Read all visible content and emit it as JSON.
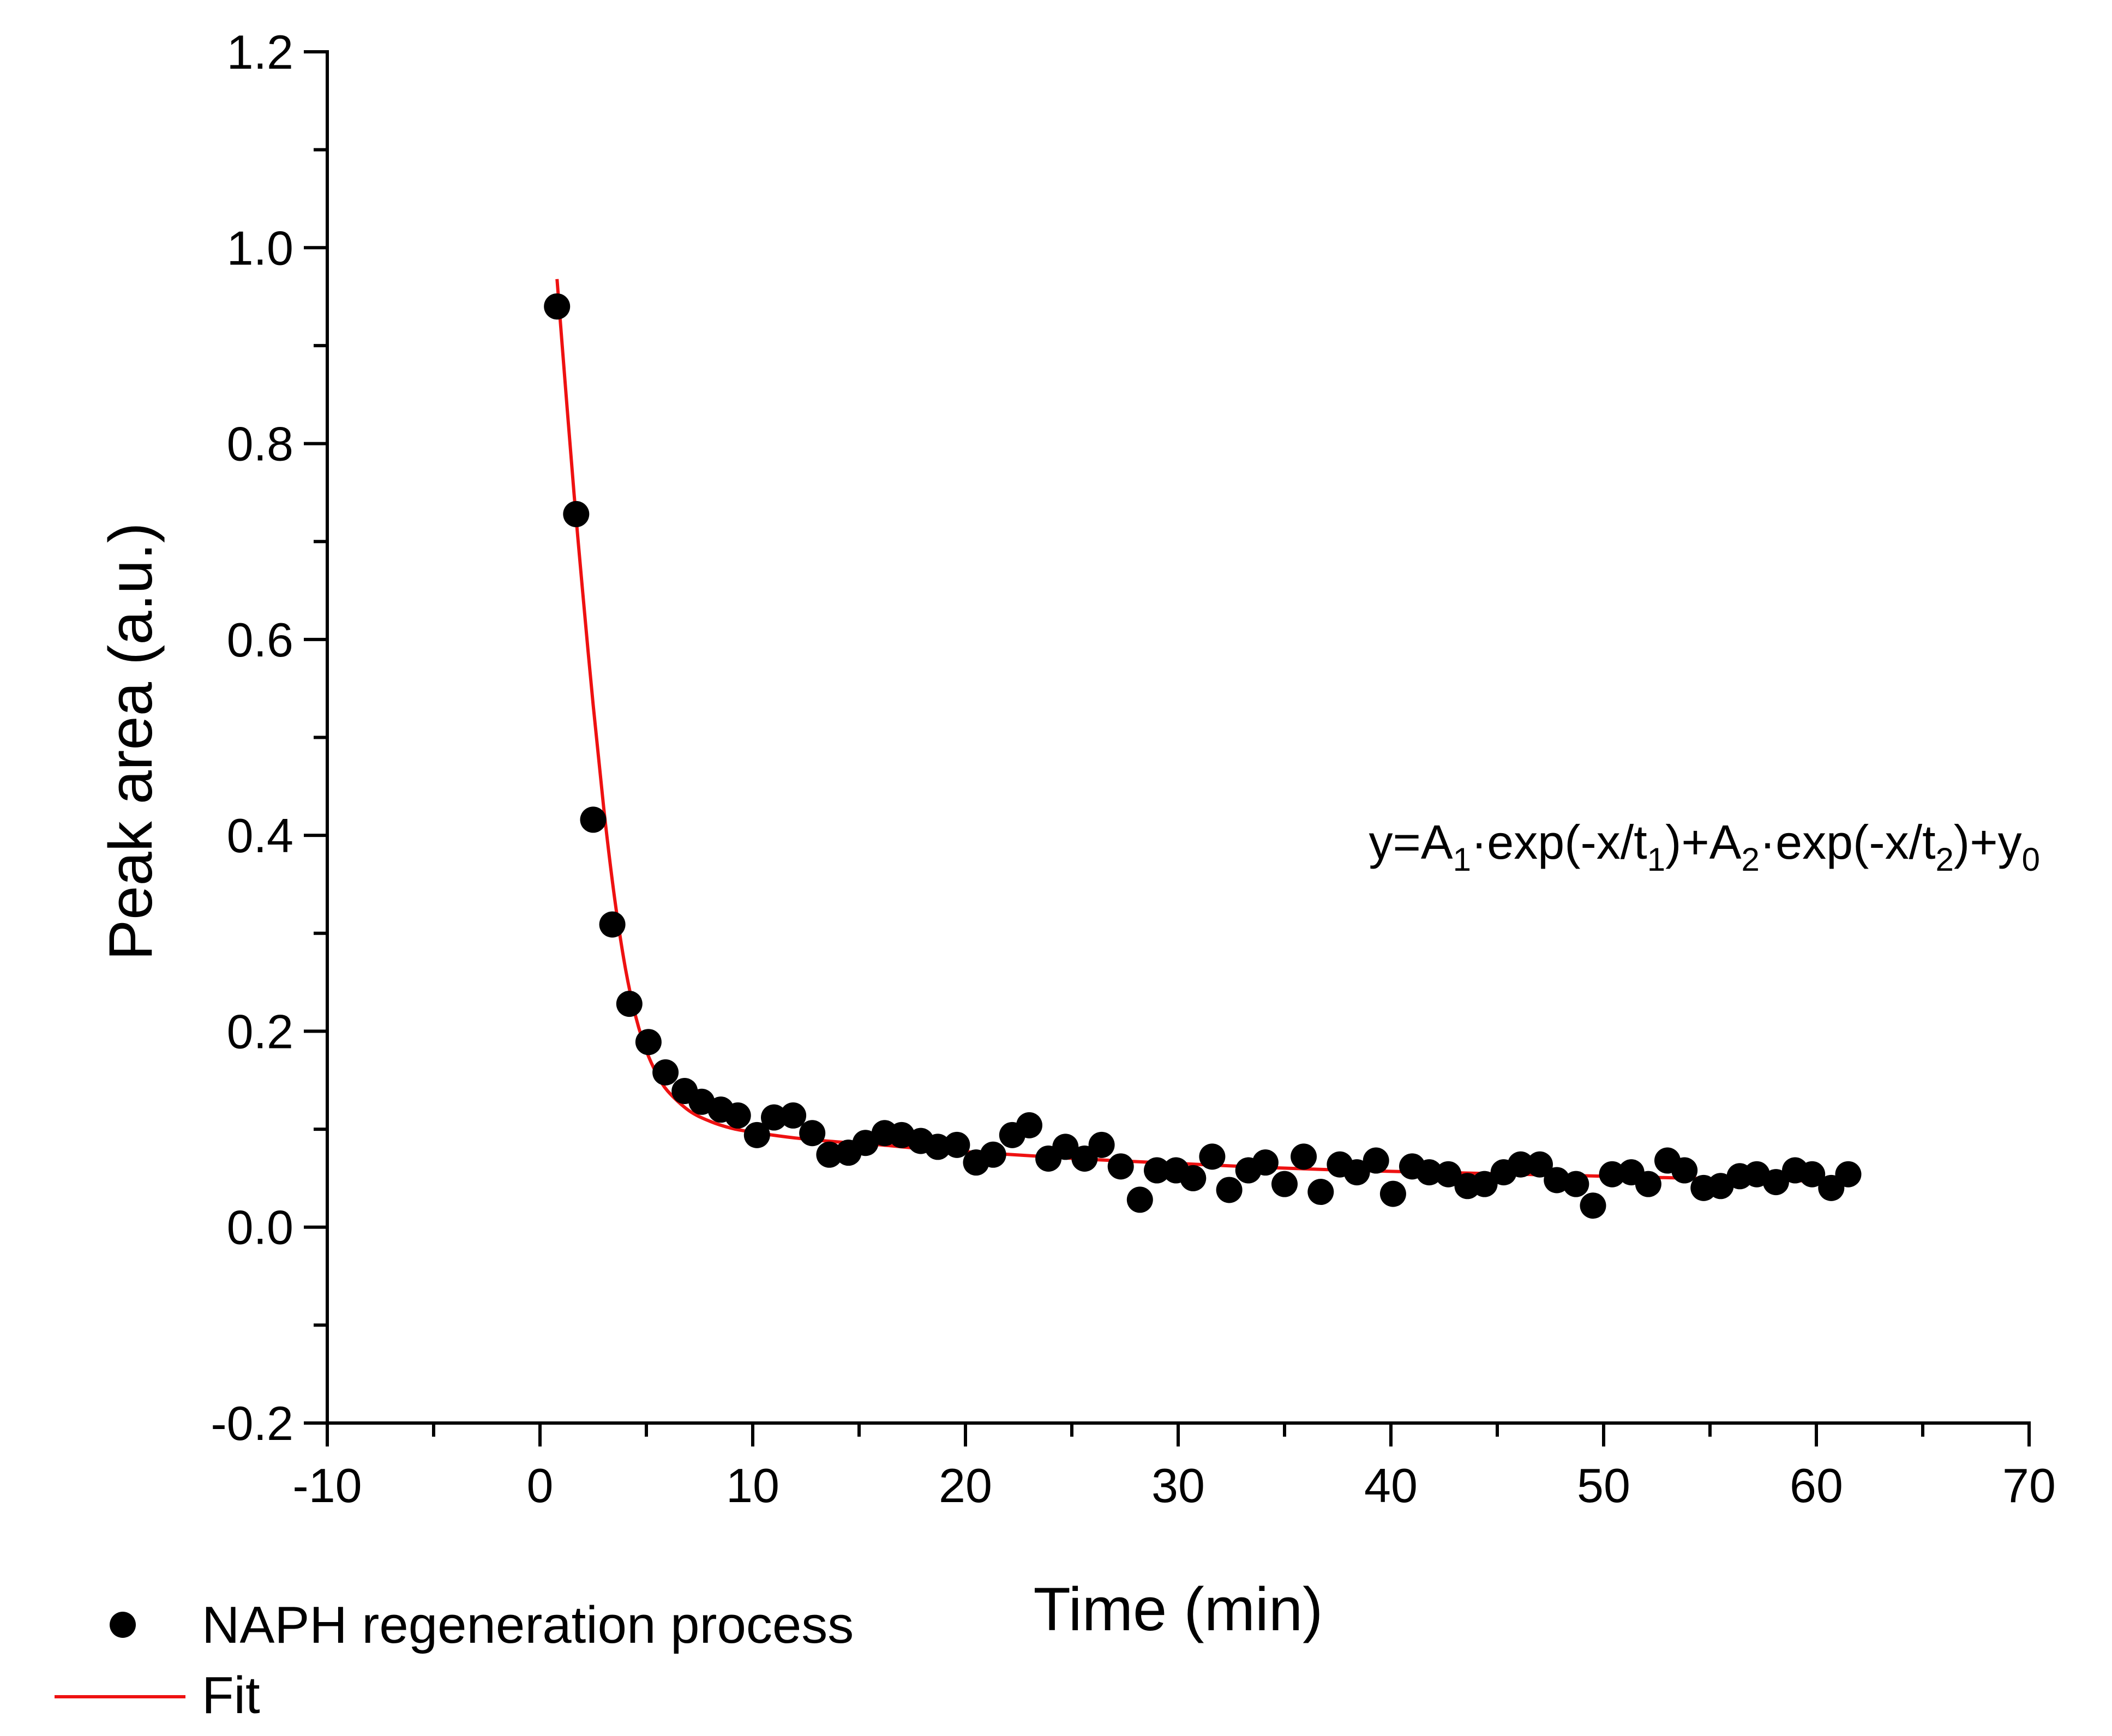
{
  "chart_data": {
    "type": "scatter",
    "title": "",
    "xlabel": "Time (min)",
    "ylabel": "Peak area (a.u.)",
    "xlim": [
      -10,
      70
    ],
    "ylim": [
      -0.2,
      1.2
    ],
    "xticks": [
      "-10",
      "0",
      "10",
      "20",
      "30",
      "40",
      "50",
      "60",
      "70"
    ],
    "yticks": [
      "-0.2",
      "0.0",
      "0.2",
      "0.4",
      "0.6",
      "0.8",
      "1.0",
      "1.2"
    ],
    "grid": false,
    "legend_position": "bottom-left",
    "equation": {
      "y_eq": "y=A",
      "sub_1": "1",
      "exp_t": "·exp(-x/t",
      "sub_t1": "1",
      "plus_A": ")+A",
      "sub_2": "2",
      "sub_t2": "2",
      "plus_y": ")+y",
      "sub_0": "0"
    },
    "series": [
      {
        "name": "NAPH regeneration process",
        "kind": "scatter",
        "color": "#000000",
        "x": [
          0.8,
          1.7,
          2.5,
          3.4,
          4.2,
          5.1,
          5.9,
          6.8,
          7.6,
          8.5,
          9.3,
          10.2,
          11.0,
          11.9,
          12.8,
          13.6,
          14.5,
          15.3,
          16.2,
          17.0,
          17.9,
          18.7,
          19.6,
          20.5,
          21.3,
          22.2,
          23.0,
          23.9,
          24.7,
          25.6,
          26.4,
          27.3,
          28.2,
          29.0,
          29.9,
          30.7,
          31.6,
          32.4,
          33.3,
          34.1,
          35.0,
          35.9,
          36.7,
          37.6,
          38.4,
          39.3,
          40.1,
          41.0,
          41.8,
          42.7,
          43.6,
          44.4,
          45.3,
          46.1,
          47.0,
          47.8,
          48.7,
          49.5,
          50.4,
          51.3,
          52.1,
          53.0,
          53.8,
          54.7,
          55.5,
          56.4,
          57.2,
          58.1,
          59.0,
          59.8,
          60.7,
          61.5
        ],
        "y": [
          0.94,
          0.728,
          0.416,
          0.309,
          0.228,
          0.189,
          0.158,
          0.139,
          0.128,
          0.12,
          0.114,
          0.094,
          0.112,
          0.114,
          0.096,
          0.074,
          0.076,
          0.086,
          0.096,
          0.094,
          0.088,
          0.082,
          0.084,
          0.066,
          0.074,
          0.094,
          0.104,
          0.07,
          0.082,
          0.07,
          0.084,
          0.062,
          0.028,
          0.058,
          0.058,
          0.05,
          0.072,
          0.038,
          0.058,
          0.066,
          0.044,
          0.072,
          0.036,
          0.064,
          0.056,
          0.068,
          0.034,
          0.062,
          0.056,
          0.054,
          0.042,
          0.044,
          0.056,
          0.064,
          0.064,
          0.048,
          0.044,
          0.022,
          0.054,
          0.056,
          0.044,
          0.068,
          0.058,
          0.04,
          0.042,
          0.052,
          0.054,
          0.046,
          0.058,
          0.054,
          0.04,
          0.054
        ]
      },
      {
        "name": "Fit",
        "kind": "line",
        "color": "#ee1111",
        "x": [
          0.8,
          1.2,
          1.6,
          2.0,
          2.5,
          3.0,
          3.5,
          4.0,
          4.5,
          5.0,
          5.5,
          6.0,
          7.0,
          8.0,
          9.0,
          10.0,
          12.0,
          14.0,
          16.0,
          18.0,
          20.0,
          23.0,
          26.0,
          30.0,
          34.0,
          38.0,
          42.0,
          46.0,
          50.0,
          54.0,
          58.0,
          61.8
        ],
        "y": [
          0.968,
          0.857,
          0.749,
          0.65,
          0.533,
          0.427,
          0.337,
          0.266,
          0.215,
          0.18,
          0.156,
          0.139,
          0.119,
          0.108,
          0.101,
          0.097,
          0.091,
          0.087,
          0.084,
          0.08,
          0.077,
          0.073,
          0.069,
          0.065,
          0.061,
          0.058,
          0.056,
          0.054,
          0.052,
          0.05,
          0.048,
          0.046
        ]
      }
    ]
  }
}
